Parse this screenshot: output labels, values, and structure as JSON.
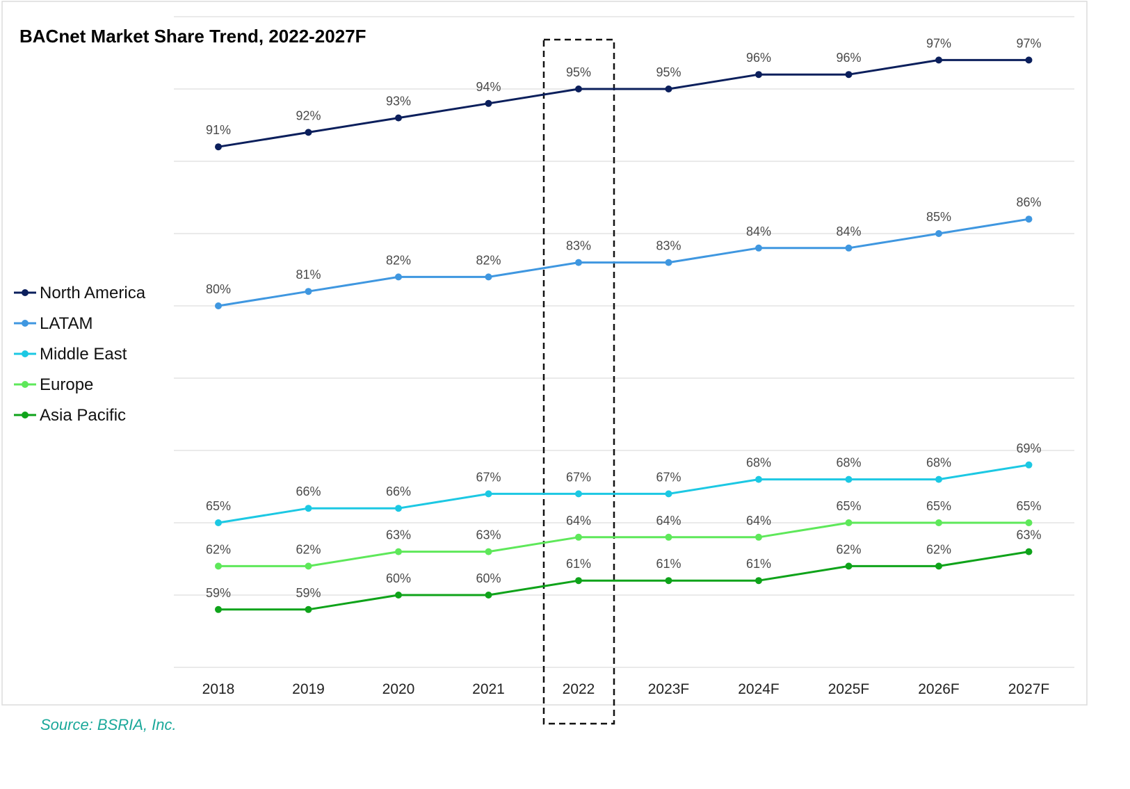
{
  "chart_data": {
    "type": "line",
    "title": "BACnet Market Share Trend, 2022-2027F",
    "xlabel": "",
    "ylabel": "",
    "categories": [
      "2018",
      "2019",
      "2020",
      "2021",
      "2022",
      "2023F",
      "2024F",
      "2025F",
      "2026F",
      "2027F"
    ],
    "ylim": [
      55,
      100
    ],
    "grid": true,
    "legend_position": "left",
    "highlighted_category": "2022",
    "series": [
      {
        "name": "North America",
        "color": "#0b1f5c",
        "values": [
          91,
          92,
          93,
          94,
          95,
          95,
          96,
          96,
          97,
          97
        ],
        "labels": [
          "91%",
          "92%",
          "93%",
          "94%",
          "95%",
          "95%",
          "96%",
          "96%",
          "97%",
          "97%"
        ]
      },
      {
        "name": "LATAM",
        "color": "#3f97e0",
        "values": [
          80,
          81,
          82,
          82,
          83,
          83,
          84,
          84,
          85,
          86
        ],
        "labels": [
          "80%",
          "81%",
          "82%",
          "82%",
          "83%",
          "83%",
          "84%",
          "84%",
          "85%",
          "86%"
        ]
      },
      {
        "name": "Middle East",
        "color": "#1cc8e3",
        "values": [
          65,
          66,
          66,
          67,
          67,
          67,
          68,
          68,
          68,
          69
        ],
        "labels": [
          "65%",
          "66%",
          "66%",
          "67%",
          "67%",
          "67%",
          "68%",
          "68%",
          "68%",
          "69%"
        ]
      },
      {
        "name": "Europe",
        "color": "#5ee85a",
        "values": [
          62,
          62,
          63,
          63,
          64,
          64,
          64,
          65,
          65,
          65
        ],
        "labels": [
          "62%",
          "62%",
          "63%",
          "63%",
          "64%",
          "64%",
          "64%",
          "65%",
          "65%",
          "65%"
        ]
      },
      {
        "name": "Asia Pacific",
        "color": "#0fa31a",
        "values": [
          59,
          59,
          60,
          60,
          61,
          61,
          61,
          62,
          62,
          63
        ],
        "labels": [
          "59%",
          "59%",
          "60%",
          "60%",
          "61%",
          "61%",
          "61%",
          "62%",
          "62%",
          "63%"
        ]
      }
    ]
  },
  "source": "Source: BSRIA, Inc."
}
